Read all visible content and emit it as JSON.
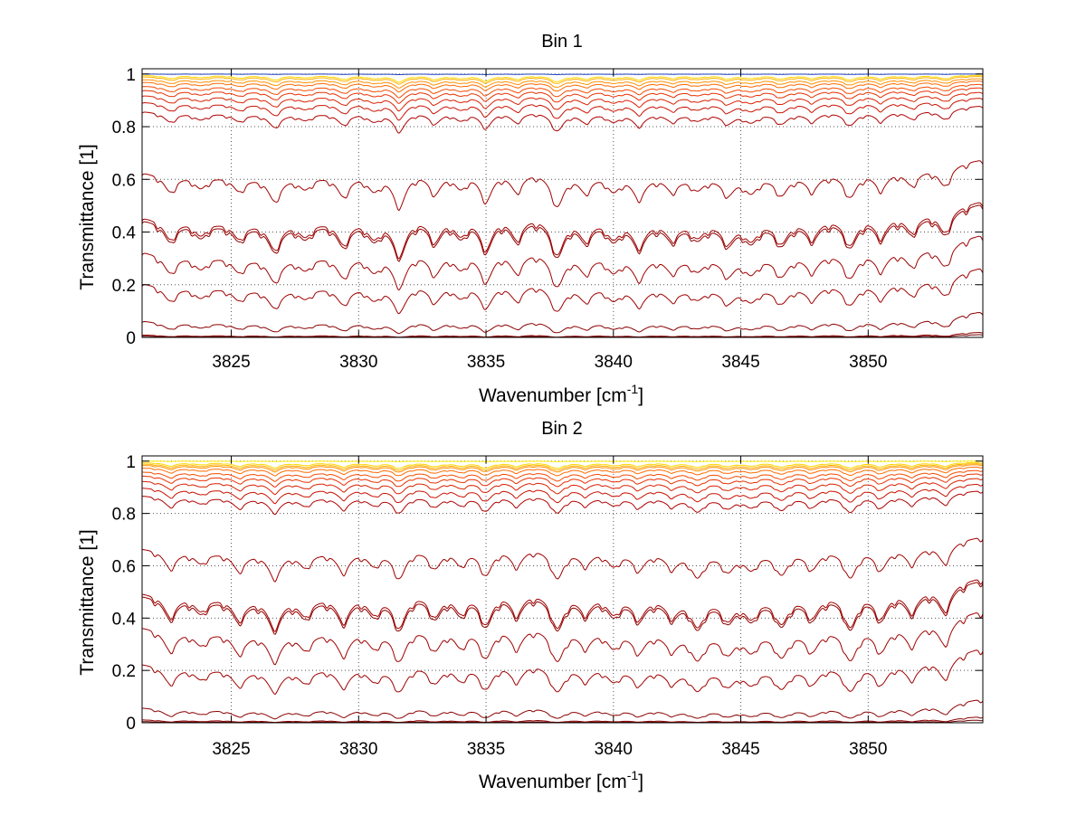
{
  "figure": {
    "background": "#ffffff",
    "grid_color": "#555555"
  },
  "chart_data": [
    {
      "type": "line",
      "title": "Bin 1",
      "xlabel": "Wavenumber [cm",
      "xlabel_sup": "-1",
      "xlabel_close": "]",
      "ylabel": "Transmittance [1]",
      "xlim": [
        3821.5,
        3854.5
      ],
      "ylim": [
        0,
        1.02
      ],
      "xticks": [
        3825,
        3830,
        3835,
        3840,
        3845,
        3850
      ],
      "yticks": [
        0,
        0.2,
        0.4,
        0.6,
        0.8,
        1
      ],
      "ytick_labels": [
        "0",
        "0.2",
        "0.4",
        "0.6",
        "0.8",
        "1"
      ],
      "grid": true,
      "lines_at_x_3822": [
        1.0,
        0.995,
        0.99,
        0.98,
        0.97,
        0.955,
        0.94,
        0.92,
        0.895,
        0.86,
        0.63,
        0.46,
        0.45,
        0.33,
        0.21,
        0.065,
        0.01,
        0.005
      ],
      "line_colors": [
        "#1f3fbf",
        "#ffd700",
        "#ffb000",
        "#ff9000",
        "#ff6a00",
        "#f54a00",
        "#e83000",
        "#d82000",
        "#c81000",
        "#b00000",
        "#a00000",
        "#a00000",
        "#900000",
        "#a00000",
        "#a00000",
        "#8b0000",
        "#8b0000",
        "#700000"
      ],
      "absorption_lines": [
        {
          "x": 3822.6,
          "depth": 0.5
        },
        {
          "x": 3823.8,
          "depth": 0.35
        },
        {
          "x": 3825.3,
          "depth": 0.4
        },
        {
          "x": 3826.7,
          "depth": 0.7
        },
        {
          "x": 3827.9,
          "depth": 0.35
        },
        {
          "x": 3829.4,
          "depth": 0.6
        },
        {
          "x": 3830.6,
          "depth": 0.45
        },
        {
          "x": 3831.6,
          "depth": 1.0
        },
        {
          "x": 3833.0,
          "depth": 0.6
        },
        {
          "x": 3834.0,
          "depth": 0.45
        },
        {
          "x": 3835.0,
          "depth": 0.85
        },
        {
          "x": 3836.2,
          "depth": 0.55
        },
        {
          "x": 3837.8,
          "depth": 1.0
        },
        {
          "x": 3838.9,
          "depth": 0.5
        },
        {
          "x": 3840.0,
          "depth": 0.45
        },
        {
          "x": 3841.0,
          "depth": 0.65
        },
        {
          "x": 3842.3,
          "depth": 0.4
        },
        {
          "x": 3843.3,
          "depth": 0.35
        },
        {
          "x": 3844.5,
          "depth": 0.5
        },
        {
          "x": 3845.4,
          "depth": 0.45
        },
        {
          "x": 3846.6,
          "depth": 0.55
        },
        {
          "x": 3847.8,
          "depth": 0.45
        },
        {
          "x": 3849.3,
          "depth": 0.7
        },
        {
          "x": 3850.5,
          "depth": 0.5
        },
        {
          "x": 3851.7,
          "depth": 0.4
        },
        {
          "x": 3853.0,
          "depth": 0.55
        }
      ]
    },
    {
      "type": "line",
      "title": "Bin 2",
      "xlabel": "Wavenumber [cm",
      "xlabel_sup": "-1",
      "xlabel_close": "]",
      "ylabel": "Transmittance [1]",
      "xlim": [
        3821.5,
        3854.5
      ],
      "ylim": [
        0,
        1.02
      ],
      "xticks": [
        3825,
        3830,
        3835,
        3840,
        3845,
        3850
      ],
      "yticks": [
        0,
        0.2,
        0.4,
        0.6,
        0.8,
        1
      ],
      "ytick_labels": [
        "0",
        "0.2",
        "0.4",
        "0.6",
        "0.8",
        "1"
      ],
      "grid": true,
      "lines_at_x_3822": [
        1.0,
        0.995,
        0.99,
        0.985,
        0.975,
        0.96,
        0.945,
        0.925,
        0.9,
        0.87,
        0.67,
        0.5,
        0.49,
        0.37,
        0.23,
        0.06,
        0.012,
        0.005
      ],
      "line_colors": [
        "#ffee00",
        "#ffd700",
        "#ffb000",
        "#ff9000",
        "#ff6a00",
        "#f54a00",
        "#e83000",
        "#d82000",
        "#c81000",
        "#b00000",
        "#a00000",
        "#a00000",
        "#900000",
        "#a00000",
        "#a00000",
        "#8b0000",
        "#8b0000",
        "#700000"
      ],
      "absorption_lines": [
        {
          "x": 3822.6,
          "depth": 0.55
        },
        {
          "x": 3823.8,
          "depth": 0.35
        },
        {
          "x": 3825.3,
          "depth": 0.55
        },
        {
          "x": 3826.7,
          "depth": 0.8
        },
        {
          "x": 3827.9,
          "depth": 0.45
        },
        {
          "x": 3829.4,
          "depth": 0.65
        },
        {
          "x": 3830.6,
          "depth": 0.45
        },
        {
          "x": 3831.6,
          "depth": 0.9
        },
        {
          "x": 3833.0,
          "depth": 0.6
        },
        {
          "x": 3834.0,
          "depth": 0.5
        },
        {
          "x": 3835.0,
          "depth": 0.85
        },
        {
          "x": 3836.2,
          "depth": 0.55
        },
        {
          "x": 3837.8,
          "depth": 0.95
        },
        {
          "x": 3838.9,
          "depth": 0.45
        },
        {
          "x": 3840.0,
          "depth": 0.45
        },
        {
          "x": 3841.0,
          "depth": 0.55
        },
        {
          "x": 3842.3,
          "depth": 0.45
        },
        {
          "x": 3843.3,
          "depth": 0.75
        },
        {
          "x": 3844.5,
          "depth": 0.55
        },
        {
          "x": 3845.4,
          "depth": 0.5
        },
        {
          "x": 3846.6,
          "depth": 0.7
        },
        {
          "x": 3847.8,
          "depth": 0.55
        },
        {
          "x": 3849.3,
          "depth": 0.9
        },
        {
          "x": 3850.5,
          "depth": 0.65
        },
        {
          "x": 3851.7,
          "depth": 0.5
        },
        {
          "x": 3853.0,
          "depth": 0.6
        }
      ]
    }
  ]
}
